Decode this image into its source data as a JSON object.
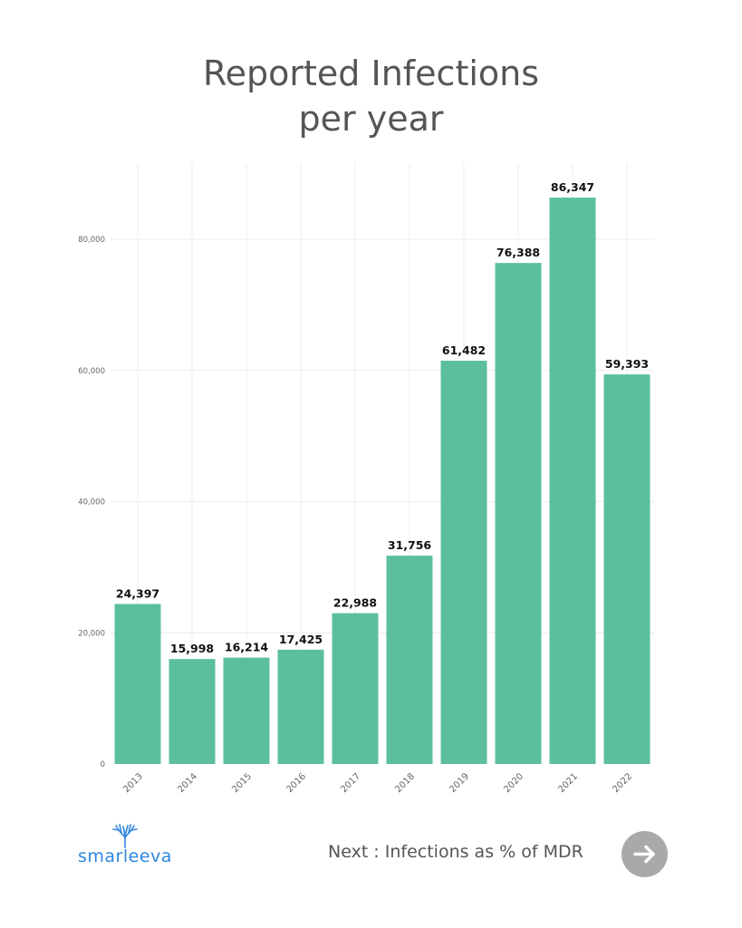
{
  "chart_data": {
    "type": "bar",
    "title": [
      "Reported Infections",
      "per year"
    ],
    "categories": [
      "2013",
      "2014",
      "2015",
      "2016",
      "2017",
      "2018",
      "2019",
      "2020",
      "2021",
      "2022"
    ],
    "values": [
      24397,
      15998,
      16214,
      17425,
      22988,
      31756,
      61482,
      76388,
      86347,
      59393
    ],
    "value_labels": [
      "24,397",
      "15,998",
      "16,214",
      "17,425",
      "22,988",
      "31,756",
      "61,482",
      "76,388",
      "86,347",
      "59,393"
    ],
    "ylim": [
      0,
      90000
    ],
    "yticks": [
      0,
      20000,
      40000,
      60000,
      80000
    ],
    "ytick_labels": [
      "0",
      "20,000",
      "40,000",
      "60,000",
      "80,000"
    ],
    "grid": true,
    "bar_color": "#5bbf9f"
  },
  "footer": {
    "brand": "smarleeva",
    "next_label": "Next :  Infections as % of MDR"
  },
  "colors": {
    "title": "#555555",
    "brand": "#2f86dd",
    "next_button": "#a9a9a9"
  }
}
